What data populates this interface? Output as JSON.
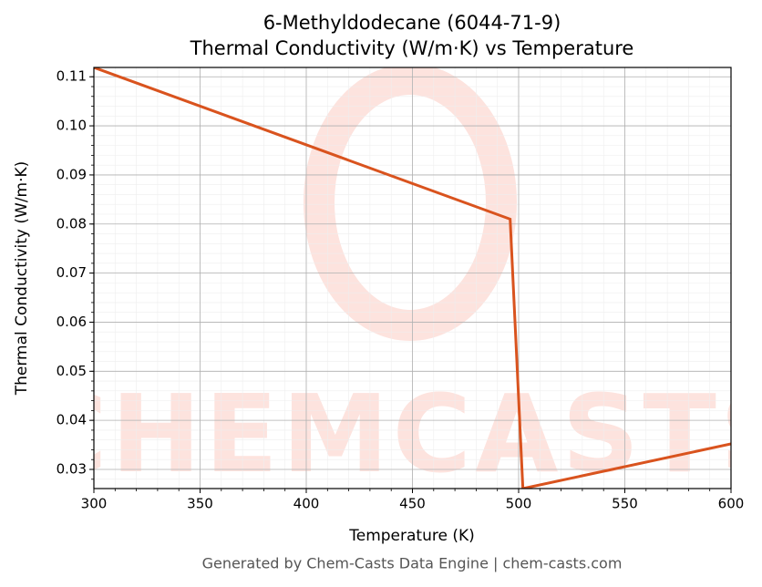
{
  "chart_data": {
    "type": "line",
    "title": "6-Methyldodecane (6044-71-9)",
    "subtitle": "Thermal Conductivity (W/m·K) vs Temperature",
    "x_label": "Temperature (K)",
    "y_label": "Thermal Conductivity (W/m·K)",
    "footer": "Generated by Chem-Casts Data Engine | chem-casts.com",
    "watermark": "CHEMCASTS",
    "x": [
      300,
      496,
      502,
      600
    ],
    "series": [
      {
        "name": "Thermal Conductivity",
        "color": "#d9531e",
        "values": [
          0.1119,
          0.081,
          0.0261,
          0.0352
        ]
      }
    ],
    "xlim": [
      300,
      600
    ],
    "xticks": [
      300,
      350,
      400,
      450,
      500,
      550,
      600
    ],
    "ylim": [
      0.0261,
      0.1119
    ],
    "yticks": [
      0.03,
      0.04,
      0.05,
      0.06,
      0.07,
      0.08,
      0.09,
      {
        "value": 0.1,
        "label": "0.10"
      },
      0.11
    ],
    "grid": true,
    "minor_grid": true
  }
}
